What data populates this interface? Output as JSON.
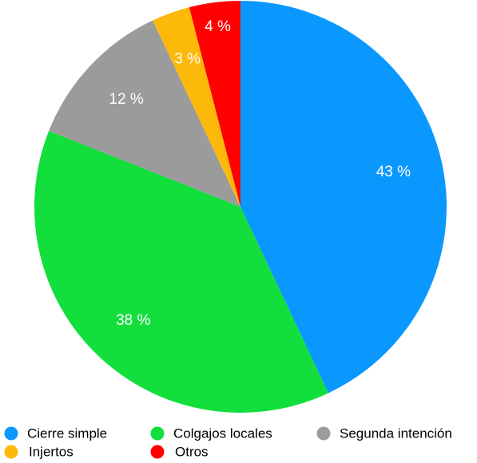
{
  "chart_data": {
    "type": "pie",
    "categories": [
      "Cierre simple",
      "Colgajos locales",
      "Segunda intención",
      "Injertos",
      "Otros"
    ],
    "values": [
      43,
      38,
      12,
      3,
      4
    ],
    "value_labels": [
      "43 %",
      "38 %",
      "12 %",
      "3 %",
      "4 %"
    ],
    "colors": [
      "#0a98ff",
      "#12df3c",
      "#9b9b9b",
      "#fdb90a",
      "#ff0000"
    ],
    "legend": "bottom"
  }
}
